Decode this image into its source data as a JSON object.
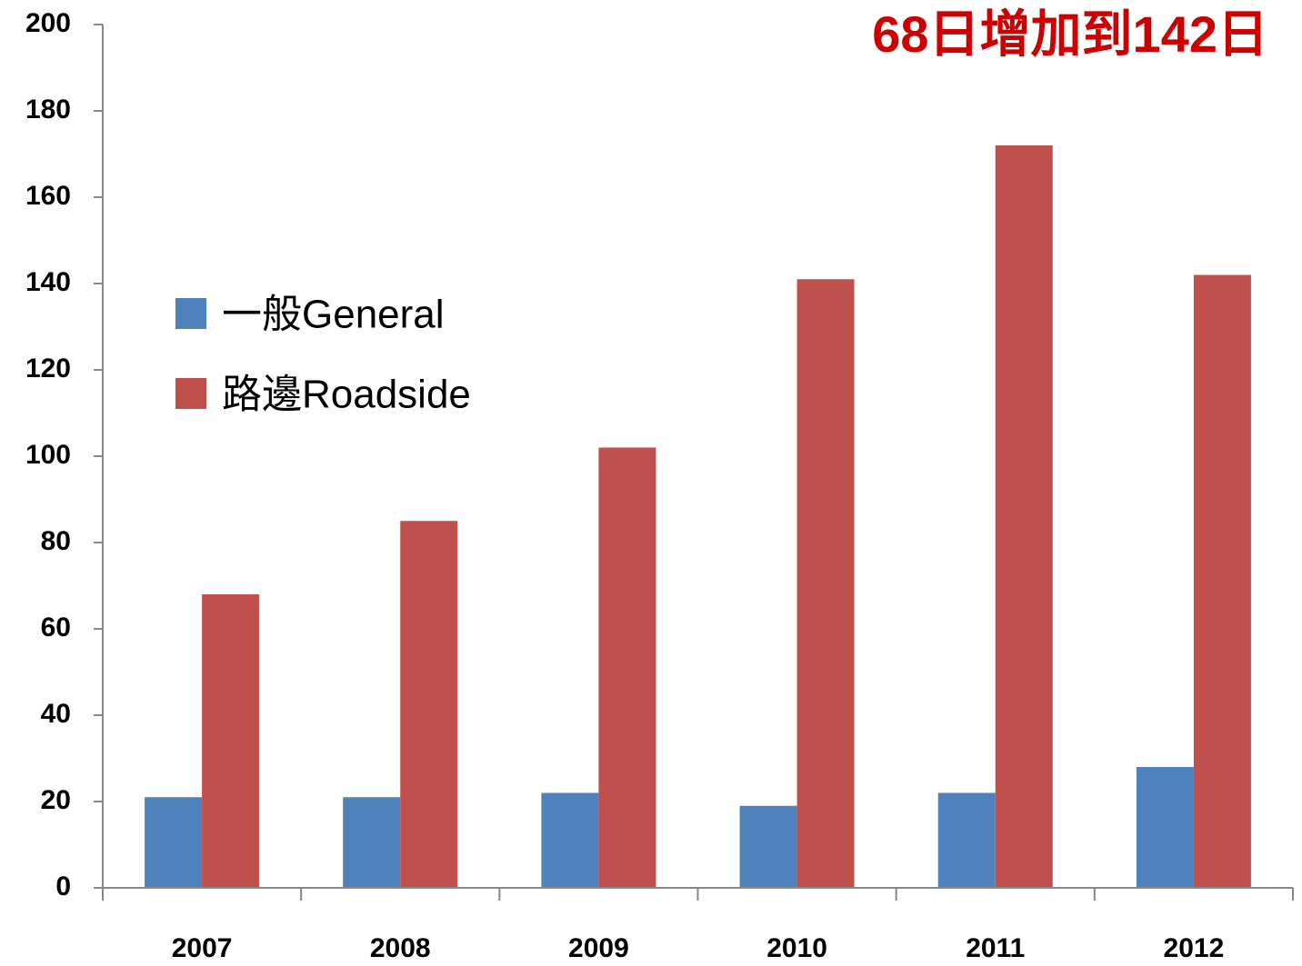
{
  "chart_data": {
    "type": "bar",
    "annotation": "68日增加到142日",
    "categories": [
      "2007",
      "2008",
      "2009",
      "2010",
      "2011",
      "2012"
    ],
    "series": [
      {
        "name": "一般General",
        "color": "#4f81bd",
        "values": [
          21,
          21,
          22,
          19,
          22,
          28
        ]
      },
      {
        "name": "路邊Roadside",
        "color": "#c0504d",
        "values": [
          68,
          85,
          102,
          141,
          172,
          142
        ]
      }
    ],
    "ylim": [
      0,
      200
    ],
    "yticks": [
      0,
      20,
      40,
      60,
      80,
      100,
      120,
      140,
      160,
      180,
      200
    ],
    "grid": false,
    "legend": "upper left"
  }
}
